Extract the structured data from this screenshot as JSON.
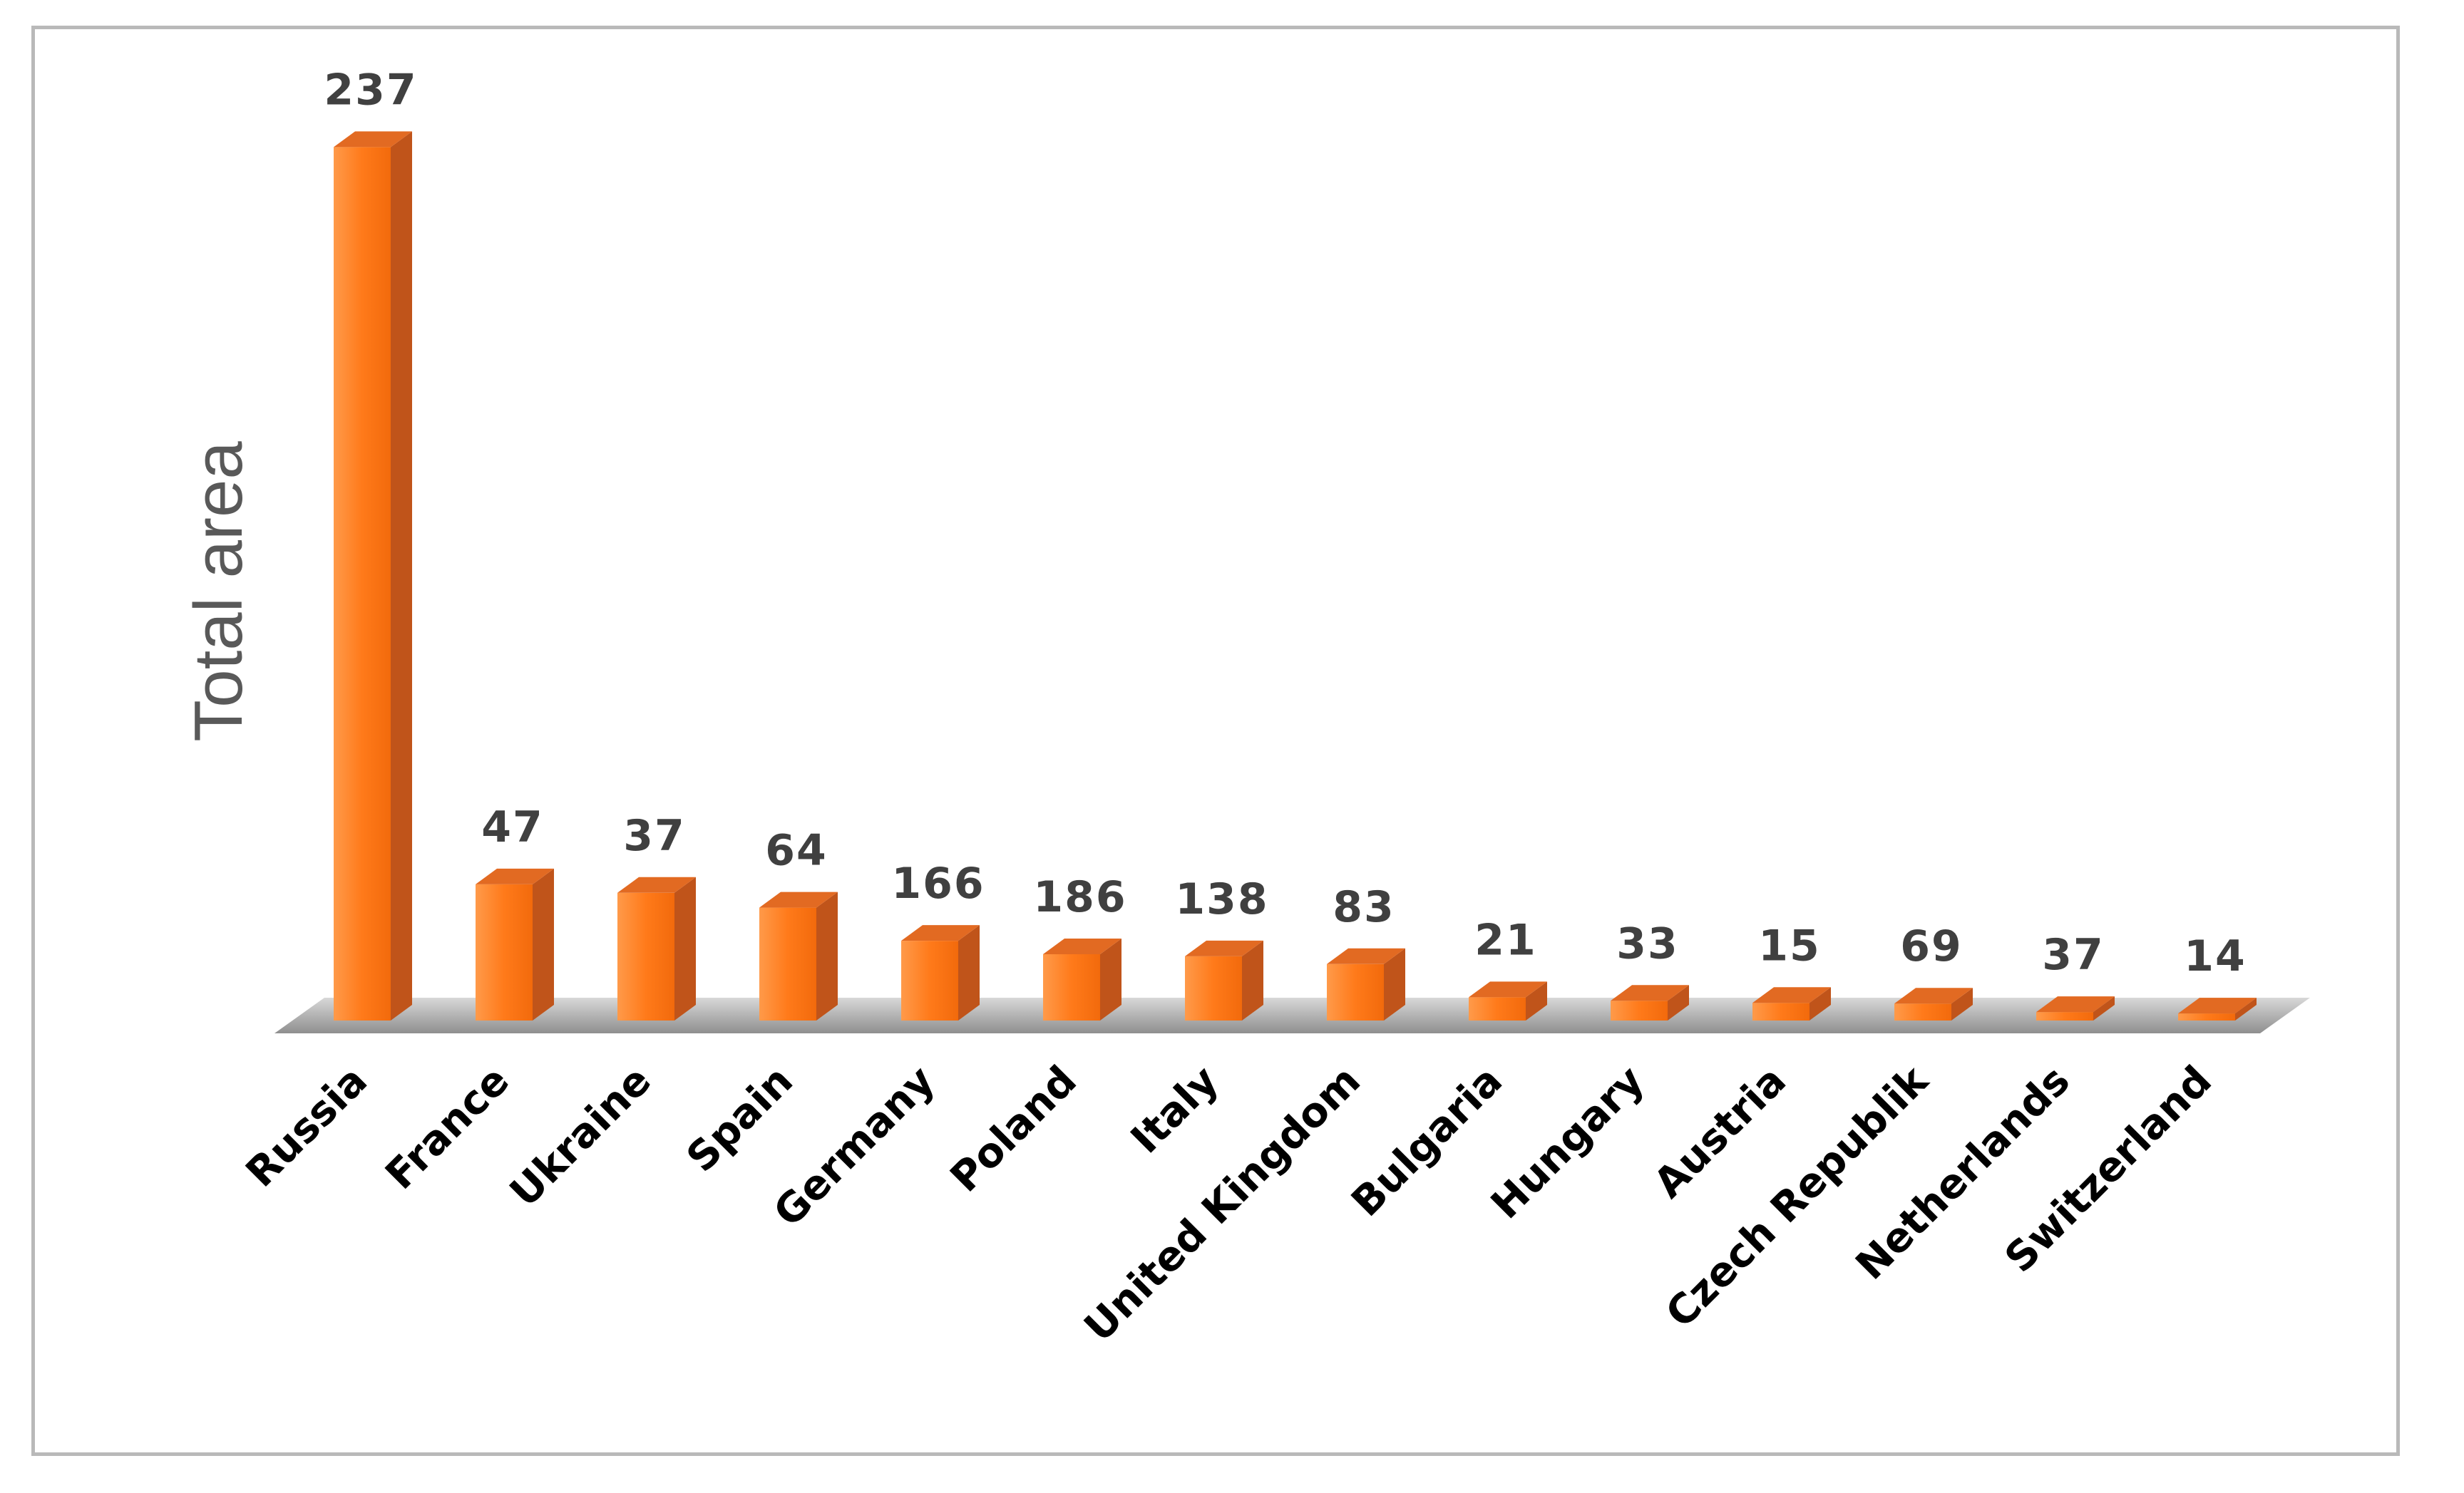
{
  "chart_data": {
    "type": "bar",
    "ylabel": "Total area",
    "xlabel": "",
    "title": "",
    "categories": [
      "Russia",
      "France",
      "Ukraine",
      "Spain",
      "Germany",
      "Poland",
      "Italy",
      "United Kingdom",
      "Bulgaria",
      "Hungary",
      "Austria",
      "Czech Republik",
      "Netherlands",
      "Switzerland"
    ],
    "labels": [
      237,
      47,
      37,
      64,
      166,
      186,
      138,
      83,
      21,
      33,
      15,
      69,
      37,
      14
    ],
    "values": [
      1238,
      193,
      181,
      160,
      113,
      94,
      91,
      80,
      33,
      28,
      25,
      24,
      12,
      10
    ],
    "colors": {
      "bar_front": "#ff7a1a",
      "bar_side": "#c0541a",
      "bar_top": "#e26a22",
      "floor": "#b5b5b5"
    },
    "grid": false,
    "legend": "none"
  }
}
